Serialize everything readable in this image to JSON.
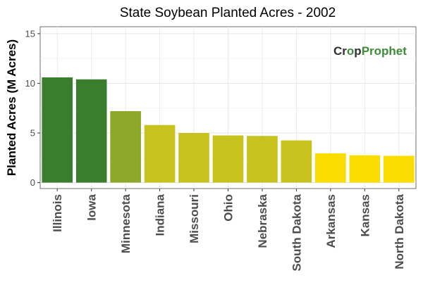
{
  "chart_data": {
    "type": "bar",
    "title": "State Soybean Planted Acres - 2002",
    "xlabel": "",
    "ylabel": "Planted Acres (M Acres)",
    "ylim": [
      -0.6,
      15.7
    ],
    "yticks": [
      0,
      5,
      10,
      15
    ],
    "grid": true,
    "categories": [
      "Illinois",
      "Iowa",
      "Minnesota",
      "Indiana",
      "Missouri",
      "Ohio",
      "Nebraska",
      "South Dakota",
      "Arkansas",
      "Kansas",
      "North Dakota"
    ],
    "values": [
      10.6,
      10.4,
      7.2,
      5.8,
      5.0,
      4.75,
      4.7,
      4.25,
      2.95,
      2.75,
      2.7
    ],
    "colors": [
      "#3a7e2d",
      "#3a7e2d",
      "#8ea82a",
      "#c8c21e",
      "#c8c21e",
      "#c8c21e",
      "#c8c21e",
      "#c8c21e",
      "#fbdc00",
      "#fbdc00",
      "#fbdc00"
    ],
    "watermark": {
      "text_a": "Cr",
      "text_b": "p",
      "text_c": "Prophet",
      "dark_color": "#2f2f2f",
      "green_color": "#3d8b37"
    }
  }
}
